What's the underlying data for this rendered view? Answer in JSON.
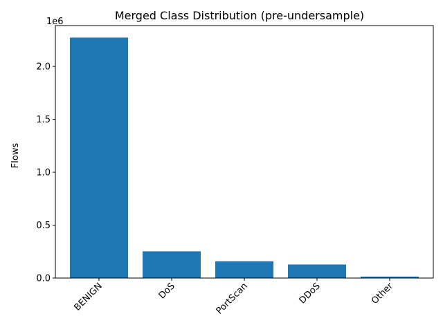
{
  "chart_data": {
    "type": "bar",
    "title": "Merged Class Distribution (pre-undersample)",
    "xlabel": "",
    "ylabel": "Flows",
    "axis_multiplier_label": "1e6",
    "categories": [
      "BENIGN",
      "DoS",
      "PortScan",
      "DDoS",
      "Other"
    ],
    "values": [
      2273097,
      252661,
      158930,
      128027,
      14000
    ],
    "ylim": [
      0,
      2386752
    ],
    "yticks": [
      {
        "value": 0,
        "label": "0.0"
      },
      {
        "value": 500000,
        "label": "0.5"
      },
      {
        "value": 1000000,
        "label": "1.0"
      },
      {
        "value": 1500000,
        "label": "1.5"
      },
      {
        "value": 2000000,
        "label": "2.0"
      }
    ],
    "bar_color": "#1f77b4",
    "grid": false,
    "x_tick_rotation_deg": 45
  }
}
